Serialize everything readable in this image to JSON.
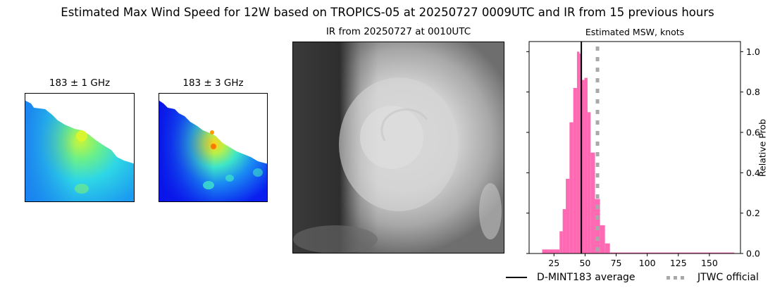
{
  "figure": {
    "suptitle": "Estimated Max Wind Speed for 12W based on TROPICS-05 at 20250727 0009UTC and IR from 15 previous hours"
  },
  "panels": {
    "mw1": {
      "title": "183 ± 1 GHz",
      "colormap": "jet"
    },
    "mw2": {
      "title": "183 ± 3 GHz",
      "colormap": "jet"
    },
    "ir": {
      "title": "IR from 20250727 at 0010UTC",
      "colormap": "gray"
    },
    "hist": {
      "title": "Estimated MSW, knots",
      "ylabel": "Relative Prob"
    }
  },
  "legend": {
    "items": [
      {
        "label": "D-MINT183 average",
        "style": "solid",
        "color": "#000000"
      },
      {
        "label": "JTWC official",
        "style": "dotted",
        "color": "#a9a9a9"
      }
    ]
  },
  "colors": {
    "bars": "#ff69b4",
    "mean_line": "#000000",
    "jtwc_line": "#a9a9a9"
  },
  "chart_data": {
    "type": "bar",
    "title": "Estimated MSW, knots",
    "xlabel": "",
    "ylabel": "Relative Prob",
    "xlim": [
      5,
      175
    ],
    "ylim": [
      0,
      1.05
    ],
    "xticks": [
      25,
      50,
      75,
      100,
      125,
      150
    ],
    "yticks": [
      0.0,
      0.2,
      0.4,
      0.6,
      0.8,
      1.0
    ],
    "ytick_labels": [
      "0.0",
      "0.2",
      "0.4",
      "0.6",
      "0.8",
      "1.0"
    ],
    "y_axis_side": "right",
    "grid": false,
    "legend_position": "below-right",
    "bins": [
      {
        "x0": 15.5,
        "x1": 29.5,
        "value": 0.02
      },
      {
        "x0": 29.5,
        "x1": 32.0,
        "value": 0.11
      },
      {
        "x0": 32.0,
        "x1": 34.5,
        "value": 0.22
      },
      {
        "x0": 34.5,
        "x1": 37.5,
        "value": 0.37
      },
      {
        "x0": 37.5,
        "x1": 40.5,
        "value": 0.65
      },
      {
        "x0": 40.5,
        "x1": 43.5,
        "value": 0.82
      },
      {
        "x0": 43.5,
        "x1": 45.5,
        "value": 1.0
      },
      {
        "x0": 45.5,
        "x1": 47.5,
        "value": 0.99
      },
      {
        "x0": 47.5,
        "x1": 49.5,
        "value": 0.86
      },
      {
        "x0": 49.5,
        "x1": 52.0,
        "value": 0.87
      },
      {
        "x0": 52.0,
        "x1": 54.5,
        "value": 0.7
      },
      {
        "x0": 54.5,
        "x1": 58.0,
        "value": 0.5
      },
      {
        "x0": 58.0,
        "x1": 62.0,
        "value": 0.27
      },
      {
        "x0": 62.0,
        "x1": 66.0,
        "value": 0.14
      },
      {
        "x0": 66.0,
        "x1": 70.0,
        "value": 0.05
      },
      {
        "x0": 70.0,
        "x1": 170.0,
        "value": 0.005
      }
    ],
    "mean_line_x": 47,
    "jtwc_official_x": 60,
    "series": [
      {
        "name": "D-MINT183 average",
        "type": "vline",
        "x": 47
      },
      {
        "name": "JTWC official",
        "type": "vline-dotted",
        "x": 60
      }
    ]
  }
}
